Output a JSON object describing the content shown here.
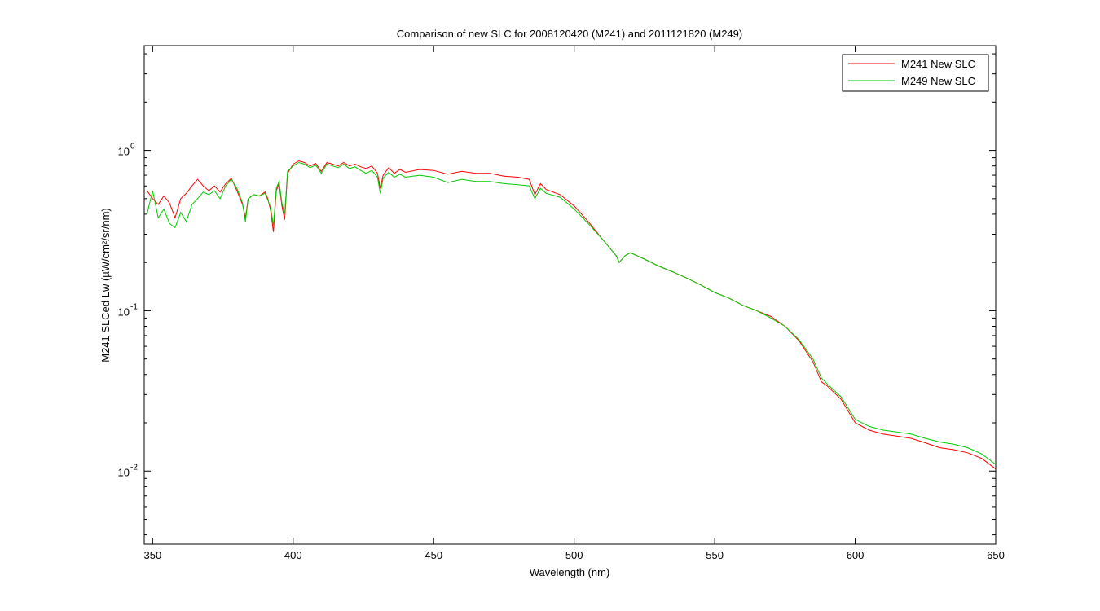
{
  "chart_data": {
    "type": "line",
    "title": "Comparison of new SLC for 2008120420  (M241)  and 2011121820  (M249)",
    "xlabel": "Wavelength (nm)",
    "ylabel": "M241 SLCed Lw (µW/cm²/sr/nm)",
    "xlim": [
      347,
      650
    ],
    "ylim": [
      0.0035,
      4.5
    ],
    "yscale": "log",
    "grid": false,
    "legend_position": "top-right",
    "xticks": [
      350,
      400,
      450,
      500,
      550,
      600,
      650
    ],
    "xtick_labels": [
      "350",
      "400",
      "450",
      "500",
      "550",
      "600",
      "650"
    ],
    "yticks": [
      1,
      0.1,
      0.01
    ],
    "ytick_labels": [
      {
        "base": "10",
        "exp": "0"
      },
      {
        "base": "10",
        "exp": "-1"
      },
      {
        "base": "10",
        "exp": "-2"
      }
    ],
    "series": [
      {
        "name": "M241 New SLC",
        "color": "#ff0000",
        "x": [
          348,
          350,
          352,
          354,
          356,
          358,
          360,
          362,
          364,
          366,
          368,
          370,
          372,
          374,
          376,
          378,
          380,
          382,
          383,
          384,
          386,
          388,
          390,
          391,
          392,
          393,
          394,
          395,
          396,
          397,
          398,
          400,
          402,
          404,
          406,
          408,
          410,
          412,
          414,
          416,
          418,
          420,
          422,
          424,
          426,
          428,
          430,
          431,
          432,
          434,
          436,
          438,
          440,
          445,
          450,
          455,
          460,
          465,
          470,
          475,
          480,
          484,
          486,
          488,
          490,
          495,
          500,
          505,
          510,
          515,
          516,
          518,
          520,
          525,
          530,
          535,
          540,
          545,
          550,
          555,
          560,
          565,
          570,
          575,
          580,
          585,
          588,
          590,
          595,
          600,
          605,
          610,
          615,
          620,
          625,
          630,
          635,
          640,
          645,
          650
        ],
        "y": [
          0.56,
          0.5,
          0.46,
          0.52,
          0.47,
          0.38,
          0.5,
          0.54,
          0.6,
          0.66,
          0.6,
          0.56,
          0.6,
          0.55,
          0.62,
          0.67,
          0.56,
          0.46,
          0.38,
          0.5,
          0.53,
          0.52,
          0.55,
          0.5,
          0.42,
          0.31,
          0.56,
          0.62,
          0.45,
          0.37,
          0.72,
          0.82,
          0.86,
          0.84,
          0.8,
          0.83,
          0.74,
          0.84,
          0.82,
          0.8,
          0.84,
          0.8,
          0.82,
          0.79,
          0.77,
          0.8,
          0.72,
          0.58,
          0.7,
          0.78,
          0.72,
          0.76,
          0.73,
          0.76,
          0.75,
          0.71,
          0.74,
          0.72,
          0.72,
          0.69,
          0.68,
          0.66,
          0.53,
          0.62,
          0.57,
          0.53,
          0.45,
          0.36,
          0.28,
          0.22,
          0.2,
          0.22,
          0.23,
          0.21,
          0.19,
          0.175,
          0.16,
          0.145,
          0.13,
          0.12,
          0.108,
          0.1,
          0.092,
          0.08,
          0.065,
          0.048,
          0.036,
          0.034,
          0.028,
          0.02,
          0.018,
          0.017,
          0.0165,
          0.016,
          0.015,
          0.014,
          0.0136,
          0.013,
          0.012,
          0.0103
        ]
      },
      {
        "name": "M249 New SLC",
        "color": "#00cc00",
        "x": [
          348,
          350,
          352,
          354,
          356,
          358,
          360,
          362,
          364,
          366,
          368,
          370,
          372,
          374,
          376,
          378,
          380,
          382,
          383,
          384,
          386,
          388,
          390,
          391,
          392,
          393,
          394,
          395,
          396,
          397,
          398,
          400,
          402,
          404,
          406,
          408,
          410,
          412,
          414,
          416,
          418,
          420,
          422,
          424,
          426,
          428,
          430,
          431,
          432,
          434,
          436,
          438,
          440,
          445,
          450,
          455,
          460,
          465,
          470,
          475,
          480,
          484,
          486,
          488,
          490,
          495,
          500,
          505,
          510,
          515,
          516,
          518,
          520,
          525,
          530,
          535,
          540,
          545,
          550,
          555,
          560,
          565,
          570,
          575,
          580,
          585,
          588,
          590,
          595,
          600,
          605,
          610,
          615,
          620,
          625,
          630,
          635,
          640,
          645,
          650
        ],
        "y": [
          0.4,
          0.56,
          0.38,
          0.43,
          0.35,
          0.33,
          0.41,
          0.36,
          0.46,
          0.5,
          0.55,
          0.53,
          0.56,
          0.5,
          0.6,
          0.66,
          0.58,
          0.47,
          0.36,
          0.5,
          0.53,
          0.52,
          0.54,
          0.49,
          0.44,
          0.34,
          0.58,
          0.64,
          0.47,
          0.4,
          0.74,
          0.8,
          0.84,
          0.82,
          0.78,
          0.81,
          0.72,
          0.82,
          0.8,
          0.78,
          0.82,
          0.77,
          0.79,
          0.75,
          0.72,
          0.75,
          0.68,
          0.54,
          0.67,
          0.73,
          0.68,
          0.71,
          0.68,
          0.7,
          0.68,
          0.63,
          0.66,
          0.64,
          0.64,
          0.62,
          0.61,
          0.6,
          0.5,
          0.58,
          0.54,
          0.51,
          0.43,
          0.35,
          0.28,
          0.22,
          0.2,
          0.22,
          0.23,
          0.21,
          0.19,
          0.175,
          0.16,
          0.145,
          0.13,
          0.12,
          0.108,
          0.1,
          0.09,
          0.08,
          0.066,
          0.05,
          0.038,
          0.035,
          0.029,
          0.021,
          0.019,
          0.018,
          0.0175,
          0.017,
          0.016,
          0.0152,
          0.0147,
          0.014,
          0.0128,
          0.011
        ]
      }
    ]
  }
}
